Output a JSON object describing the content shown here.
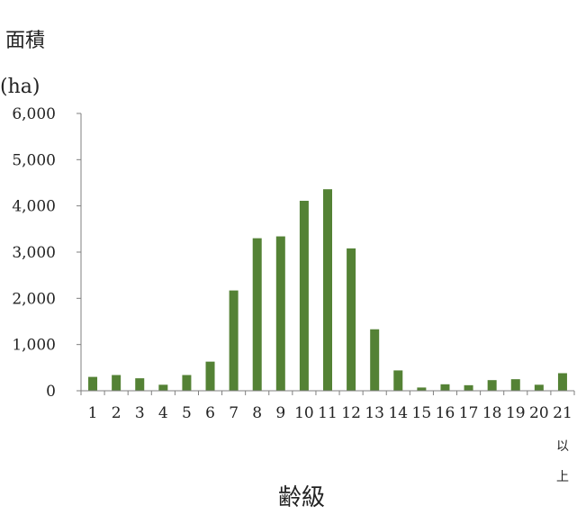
{
  "chart_data": {
    "type": "bar",
    "ylabel": "面積",
    "yunit": "(ha)",
    "xlabel": "齢級",
    "categories": [
      "1",
      "2",
      "3",
      "4",
      "5",
      "6",
      "7",
      "8",
      "9",
      "10",
      "11",
      "12",
      "13",
      "14",
      "15",
      "16",
      "17",
      "18",
      "19",
      "20",
      "21"
    ],
    "last_category_suffix": [
      "以",
      "上"
    ],
    "values": [
      300,
      340,
      270,
      130,
      340,
      630,
      2170,
      3300,
      3340,
      4110,
      4360,
      3080,
      1330,
      440,
      70,
      140,
      120,
      230,
      250,
      130,
      380
    ],
    "ylim": [
      0,
      6000
    ],
    "yticks": [
      0,
      1000,
      2000,
      3000,
      4000,
      5000,
      6000
    ],
    "ytick_labels": [
      "0",
      "1,000",
      "2,000",
      "3,000",
      "4,000",
      "5,000",
      "6,000"
    ],
    "grid": false,
    "legend": "none",
    "bar_color": "#548235",
    "axis_color": "#7f7f7f"
  }
}
